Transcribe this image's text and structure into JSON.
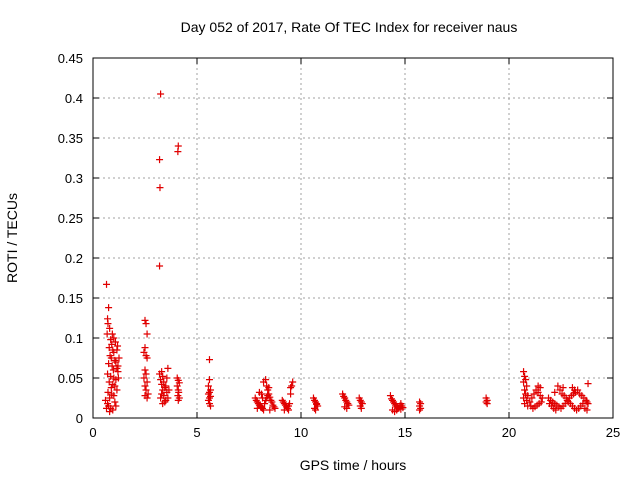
{
  "chart_data": {
    "type": "scatter",
    "title": "Day 052 of 2017, Rate Of TEC Index for receiver naus",
    "xlabel": "GPS time / hours",
    "ylabel": "ROTI / TECUs",
    "xlim": [
      0,
      25
    ],
    "ylim": [
      0,
      0.45
    ],
    "xticks": [
      0,
      5,
      10,
      15,
      20,
      25
    ],
    "xtick_labels": [
      "0",
      "5",
      "10",
      "15",
      "20",
      "25"
    ],
    "yticks": [
      0,
      0.05,
      0.1,
      0.15,
      0.2,
      0.25,
      0.3,
      0.35,
      0.4,
      0.45
    ],
    "ytick_labels": [
      "0",
      "0.05",
      "0.1",
      "0.15",
      "0.2",
      "0.25",
      "0.3",
      "0.35",
      "0.4",
      "0.45"
    ],
    "grid": true,
    "marker": "+",
    "color": "#e00000",
    "points": [
      [
        0.65,
        0.167
      ],
      [
        0.75,
        0.138
      ],
      [
        0.7,
        0.124
      ],
      [
        0.72,
        0.118
      ],
      [
        0.8,
        0.112
      ],
      [
        0.68,
        0.105
      ],
      [
        0.85,
        0.098
      ],
      [
        0.9,
        0.092
      ],
      [
        0.78,
        0.088
      ],
      [
        0.95,
        0.085
      ],
      [
        1.0,
        0.082
      ],
      [
        0.82,
        0.078
      ],
      [
        0.88,
        0.075
      ],
      [
        1.05,
        0.072
      ],
      [
        1.1,
        0.07
      ],
      [
        0.75,
        0.068
      ],
      [
        0.92,
        0.065
      ],
      [
        1.15,
        0.062
      ],
      [
        0.98,
        0.06
      ],
      [
        1.2,
        0.058
      ],
      [
        0.7,
        0.055
      ],
      [
        0.85,
        0.052
      ],
      [
        1.0,
        0.05
      ],
      [
        1.1,
        0.048
      ],
      [
        0.78,
        0.045
      ],
      [
        0.95,
        0.042
      ],
      [
        1.05,
        0.04
      ],
      [
        0.88,
        0.038
      ],
      [
        1.15,
        0.035
      ],
      [
        0.72,
        0.032
      ],
      [
        0.9,
        0.03
      ],
      [
        1.0,
        0.028
      ],
      [
        0.8,
        0.025
      ],
      [
        0.6,
        0.022
      ],
      [
        0.7,
        0.018
      ],
      [
        0.75,
        0.015
      ],
      [
        0.85,
        0.012
      ],
      [
        0.95,
        0.01
      ],
      [
        1.05,
        0.02
      ],
      [
        1.1,
        0.015
      ],
      [
        0.65,
        0.012
      ],
      [
        0.8,
        0.008
      ],
      [
        1.2,
        0.065
      ],
      [
        1.25,
        0.075
      ],
      [
        1.18,
        0.09
      ],
      [
        1.08,
        0.095
      ],
      [
        1.0,
        0.1
      ],
      [
        0.93,
        0.105
      ],
      [
        1.15,
        0.085
      ],
      [
        1.22,
        0.05
      ],
      [
        2.5,
        0.122
      ],
      [
        2.55,
        0.118
      ],
      [
        2.6,
        0.105
      ],
      [
        2.5,
        0.088
      ],
      [
        2.45,
        0.082
      ],
      [
        2.55,
        0.078
      ],
      [
        2.6,
        0.075
      ],
      [
        2.5,
        0.06
      ],
      [
        2.55,
        0.055
      ],
      [
        2.45,
        0.05
      ],
      [
        2.6,
        0.045
      ],
      [
        2.5,
        0.04
      ],
      [
        2.55,
        0.035
      ],
      [
        2.65,
        0.03
      ],
      [
        2.5,
        0.028
      ],
      [
        2.6,
        0.025
      ],
      [
        3.25,
        0.405
      ],
      [
        3.2,
        0.323
      ],
      [
        3.22,
        0.288
      ],
      [
        3.2,
        0.19
      ],
      [
        3.3,
        0.058
      ],
      [
        3.35,
        0.052
      ],
      [
        3.25,
        0.048
      ],
      [
        3.4,
        0.045
      ],
      [
        3.3,
        0.042
      ],
      [
        3.5,
        0.04
      ],
      [
        3.45,
        0.038
      ],
      [
        3.35,
        0.035
      ],
      [
        3.55,
        0.032
      ],
      [
        3.3,
        0.03
      ],
      [
        3.4,
        0.028
      ],
      [
        3.6,
        0.025
      ],
      [
        3.5,
        0.022
      ],
      [
        3.65,
        0.035
      ],
      [
        3.25,
        0.025
      ],
      [
        3.55,
        0.05
      ],
      [
        3.2,
        0.055
      ],
      [
        3.6,
        0.062
      ],
      [
        3.45,
        0.02
      ],
      [
        3.35,
        0.018
      ],
      [
        4.1,
        0.34
      ],
      [
        4.08,
        0.333
      ],
      [
        4.05,
        0.05
      ],
      [
        4.1,
        0.047
      ],
      [
        4.15,
        0.044
      ],
      [
        4.05,
        0.04
      ],
      [
        4.1,
        0.035
      ],
      [
        4.12,
        0.032
      ],
      [
        4.08,
        0.028
      ],
      [
        4.15,
        0.025
      ],
      [
        4.1,
        0.022
      ],
      [
        5.6,
        0.073
      ],
      [
        5.6,
        0.048
      ],
      [
        5.55,
        0.04
      ],
      [
        5.65,
        0.035
      ],
      [
        5.6,
        0.032
      ],
      [
        5.55,
        0.03
      ],
      [
        5.65,
        0.027
      ],
      [
        5.6,
        0.025
      ],
      [
        5.55,
        0.022
      ],
      [
        5.6,
        0.018
      ],
      [
        5.65,
        0.015
      ],
      [
        7.8,
        0.025
      ],
      [
        7.85,
        0.022
      ],
      [
        7.9,
        0.02
      ],
      [
        7.95,
        0.018
      ],
      [
        8.0,
        0.016
      ],
      [
        8.05,
        0.015
      ],
      [
        8.1,
        0.013
      ],
      [
        8.15,
        0.012
      ],
      [
        8.2,
        0.01
      ],
      [
        8.25,
        0.018
      ],
      [
        8.3,
        0.022
      ],
      [
        8.35,
        0.025
      ],
      [
        8.4,
        0.028
      ],
      [
        8.45,
        0.03
      ],
      [
        8.5,
        0.026
      ],
      [
        8.55,
        0.022
      ],
      [
        8.6,
        0.02
      ],
      [
        8.65,
        0.016
      ],
      [
        8.7,
        0.014
      ],
      [
        8.75,
        0.012
      ],
      [
        8.2,
        0.045
      ],
      [
        8.3,
        0.048
      ],
      [
        8.35,
        0.04
      ],
      [
        8.4,
        0.035
      ],
      [
        8.1,
        0.03
      ],
      [
        8.0,
        0.032
      ],
      [
        8.45,
        0.038
      ],
      [
        8.15,
        0.025
      ],
      [
        7.9,
        0.012
      ],
      [
        8.5,
        0.01
      ],
      [
        9.1,
        0.022
      ],
      [
        9.15,
        0.02
      ],
      [
        9.2,
        0.018
      ],
      [
        9.25,
        0.016
      ],
      [
        9.3,
        0.014
      ],
      [
        9.35,
        0.012
      ],
      [
        9.4,
        0.015
      ],
      [
        9.45,
        0.018
      ],
      [
        9.5,
        0.03
      ],
      [
        9.55,
        0.04
      ],
      [
        9.6,
        0.045
      ],
      [
        9.5,
        0.038
      ],
      [
        9.2,
        0.01
      ],
      [
        9.4,
        0.01
      ],
      [
        10.6,
        0.025
      ],
      [
        10.65,
        0.022
      ],
      [
        10.7,
        0.02
      ],
      [
        10.75,
        0.017
      ],
      [
        10.8,
        0.015
      ],
      [
        10.65,
        0.012
      ],
      [
        10.7,
        0.01
      ],
      [
        10.75,
        0.018
      ],
      [
        12.0,
        0.03
      ],
      [
        12.05,
        0.027
      ],
      [
        12.1,
        0.025
      ],
      [
        12.15,
        0.022
      ],
      [
        12.2,
        0.02
      ],
      [
        12.25,
        0.018
      ],
      [
        12.3,
        0.016
      ],
      [
        12.1,
        0.014
      ],
      [
        12.2,
        0.012
      ],
      [
        12.8,
        0.025
      ],
      [
        12.85,
        0.022
      ],
      [
        12.9,
        0.02
      ],
      [
        12.95,
        0.018
      ],
      [
        12.85,
        0.015
      ],
      [
        12.9,
        0.012
      ],
      [
        14.3,
        0.028
      ],
      [
        14.35,
        0.024
      ],
      [
        14.4,
        0.022
      ],
      [
        14.45,
        0.02
      ],
      [
        14.5,
        0.018
      ],
      [
        14.55,
        0.016
      ],
      [
        14.6,
        0.014
      ],
      [
        14.65,
        0.013
      ],
      [
        14.7,
        0.012
      ],
      [
        14.75,
        0.015
      ],
      [
        14.8,
        0.018
      ],
      [
        14.85,
        0.015
      ],
      [
        14.9,
        0.013
      ],
      [
        14.4,
        0.01
      ],
      [
        14.6,
        0.01
      ],
      [
        14.8,
        0.011
      ],
      [
        14.5,
        0.008
      ],
      [
        15.7,
        0.02
      ],
      [
        15.75,
        0.018
      ],
      [
        15.7,
        0.015
      ],
      [
        15.75,
        0.012
      ],
      [
        15.7,
        0.01
      ],
      [
        18.9,
        0.025
      ],
      [
        18.95,
        0.022
      ],
      [
        18.9,
        0.02
      ],
      [
        18.95,
        0.018
      ],
      [
        20.7,
        0.058
      ],
      [
        20.75,
        0.052
      ],
      [
        20.8,
        0.048
      ],
      [
        20.7,
        0.045
      ],
      [
        20.85,
        0.04
      ],
      [
        20.75,
        0.035
      ],
      [
        20.8,
        0.03
      ],
      [
        20.9,
        0.028
      ],
      [
        20.7,
        0.025
      ],
      [
        20.85,
        0.022
      ],
      [
        20.75,
        0.018
      ],
      [
        20.9,
        0.015
      ],
      [
        21.0,
        0.02
      ],
      [
        21.1,
        0.025
      ],
      [
        21.2,
        0.03
      ],
      [
        21.3,
        0.035
      ],
      [
        21.4,
        0.032
      ],
      [
        21.5,
        0.028
      ],
      [
        21.6,
        0.025
      ],
      [
        21.55,
        0.02
      ],
      [
        21.45,
        0.018
      ],
      [
        21.35,
        0.016
      ],
      [
        21.25,
        0.014
      ],
      [
        21.15,
        0.012
      ],
      [
        21.05,
        0.015
      ],
      [
        21.5,
        0.038
      ],
      [
        21.4,
        0.04
      ],
      [
        21.9,
        0.025
      ],
      [
        22.0,
        0.022
      ],
      [
        22.1,
        0.02
      ],
      [
        22.2,
        0.018
      ],
      [
        22.3,
        0.016
      ],
      [
        22.4,
        0.014
      ],
      [
        22.5,
        0.012
      ],
      [
        22.6,
        0.015
      ],
      [
        22.7,
        0.018
      ],
      [
        22.8,
        0.022
      ],
      [
        22.9,
        0.025
      ],
      [
        23.0,
        0.028
      ],
      [
        23.1,
        0.03
      ],
      [
        23.2,
        0.032
      ],
      [
        23.3,
        0.035
      ],
      [
        23.4,
        0.03
      ],
      [
        23.5,
        0.028
      ],
      [
        23.6,
        0.025
      ],
      [
        23.7,
        0.022
      ],
      [
        23.75,
        0.02
      ],
      [
        23.8,
        0.018
      ],
      [
        22.35,
        0.04
      ],
      [
        22.45,
        0.035
      ],
      [
        22.55,
        0.03
      ],
      [
        22.65,
        0.028
      ],
      [
        22.75,
        0.025
      ],
      [
        22.85,
        0.02
      ],
      [
        22.95,
        0.018
      ],
      [
        23.05,
        0.015
      ],
      [
        23.15,
        0.012
      ],
      [
        23.25,
        0.01
      ],
      [
        23.35,
        0.012
      ],
      [
        23.45,
        0.015
      ],
      [
        23.55,
        0.018
      ],
      [
        23.65,
        0.012
      ],
      [
        23.75,
        0.01
      ],
      [
        23.8,
        0.043
      ],
      [
        22.25,
        0.01
      ],
      [
        22.15,
        0.012
      ],
      [
        22.05,
        0.015
      ],
      [
        21.95,
        0.018
      ],
      [
        23.05,
        0.038
      ],
      [
        23.15,
        0.035
      ],
      [
        22.6,
        0.038
      ],
      [
        22.2,
        0.032
      ]
    ]
  }
}
